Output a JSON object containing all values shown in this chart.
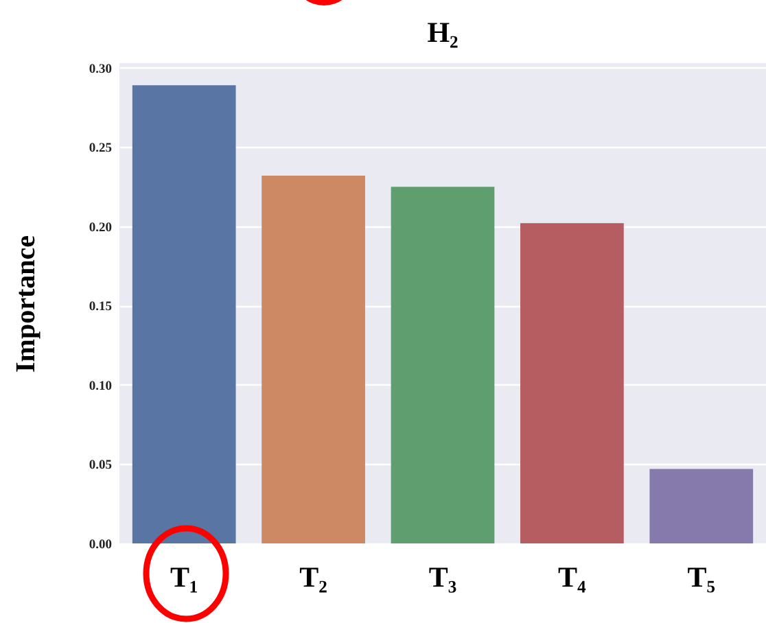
{
  "chart_data": {
    "type": "bar",
    "title": "H₂",
    "ylabel": "Importance",
    "categories": [
      "T₁",
      "T₂",
      "T₃",
      "T₄",
      "T₅"
    ],
    "values": [
      0.289,
      0.232,
      0.225,
      0.202,
      0.047
    ],
    "colors": [
      "#5875a4",
      "#cc8963",
      "#5f9e6e",
      "#b55d60",
      "#857aab"
    ],
    "ylim": [
      0,
      0.303
    ],
    "yticks": [
      {
        "value": 0,
        "label": "0.00"
      },
      {
        "value": 0.05,
        "label": "0.05"
      },
      {
        "value": 0.1,
        "label": "0.10"
      },
      {
        "value": 0.15,
        "label": "0.15"
      },
      {
        "value": 0.2,
        "label": "0.20"
      },
      {
        "value": 0.25,
        "label": "0.25"
      },
      {
        "value": 0.3,
        "label": "0.30"
      }
    ],
    "grid": "y"
  }
}
